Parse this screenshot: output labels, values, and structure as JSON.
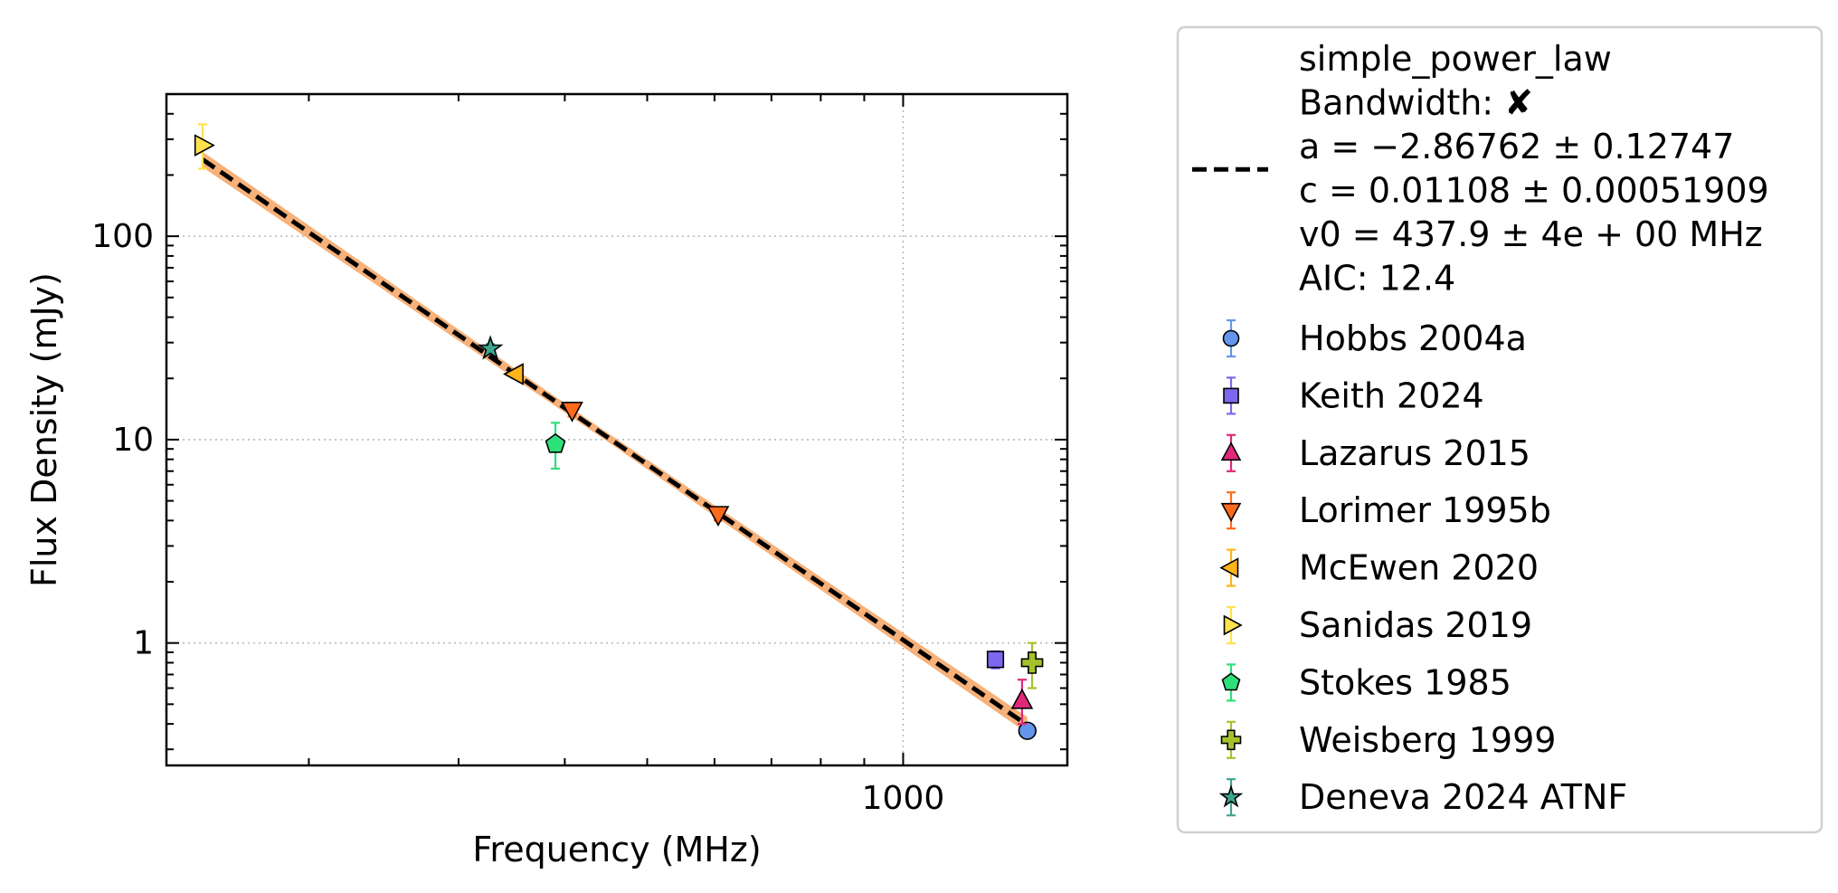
{
  "chart_data": {
    "type": "scatter",
    "xscale": "log",
    "yscale": "log",
    "xlabel": "Frequency (MHz)",
    "ylabel": "Flux Density (mJy)",
    "xlim": [
      136,
      1560
    ],
    "ylim": [
      0.25,
      500
    ],
    "grid": true,
    "legend_position": "outside-right",
    "x_ticks": [
      {
        "value": 1000,
        "label": "1000"
      }
    ],
    "y_ticks": [
      {
        "value": 1,
        "label": "1"
      },
      {
        "value": 10,
        "label": "10"
      },
      {
        "value": 100,
        "label": "100"
      }
    ],
    "fit": {
      "name": "simple_power_law",
      "legend_lines": [
        "simple_power_law",
        "Bandwidth: ✘",
        "a = −2.86762 ± 0.12747",
        "c = 0.01108 ± 0.00051909",
        "v0 = 437.9 ± 4e + 00 MHz",
        "AIC: 12.4"
      ],
      "a": -2.86762,
      "c": 0.01108,
      "v0": 437.9,
      "x_range": [
        150,
        1400
      ],
      "line_color": "#000000",
      "band_color": "#f6a86a"
    },
    "series": [
      {
        "name": "Hobbs 2004a",
        "marker": "circle",
        "color": "#6495ed",
        "points": [
          {
            "x": 1400,
            "y": 0.37,
            "yerr": [
              0.0,
              0.0
            ]
          }
        ]
      },
      {
        "name": "Keith 2024",
        "marker": "square",
        "color": "#7b68ee",
        "points": [
          {
            "x": 1284,
            "y": 0.83,
            "yerr": [
              0.08,
              0.08
            ]
          }
        ]
      },
      {
        "name": "Lazarus 2015",
        "marker": "triangle-up",
        "color": "#e0287a",
        "points": [
          {
            "x": 1380,
            "y": 0.52,
            "yerr": [
              0.12,
              0.14
            ]
          }
        ]
      },
      {
        "name": "Lorimer 1995b",
        "marker": "triangle-down",
        "color": "#ff6a1a",
        "points": [
          {
            "x": 408,
            "y": 14.0,
            "yerr": [
              1.0,
              1.0
            ]
          },
          {
            "x": 606,
            "y": 4.3,
            "yerr": [
              0.3,
              0.3
            ]
          }
        ]
      },
      {
        "name": "McEwen 2020",
        "marker": "triangle-left",
        "color": "#ffb31a",
        "points": [
          {
            "x": 350,
            "y": 21.0,
            "yerr": [
              1.0,
              1.0
            ]
          }
        ]
      },
      {
        "name": "Sanidas 2019",
        "marker": "triangle-right",
        "color": "#ffe14d",
        "points": [
          {
            "x": 150,
            "y": 280,
            "yerr": [
              65,
              75
            ]
          }
        ]
      },
      {
        "name": "Stokes 1985",
        "marker": "pentagon",
        "color": "#2ee07a",
        "points": [
          {
            "x": 390,
            "y": 9.5,
            "yerr": [
              2.3,
              2.6
            ]
          }
        ]
      },
      {
        "name": "Weisberg 1999",
        "marker": "plus",
        "color": "#a5c22a",
        "points": [
          {
            "x": 1418,
            "y": 0.8,
            "yerr": [
              0.2,
              0.2
            ]
          }
        ]
      },
      {
        "name": "Deneva 2024 ATNF",
        "marker": "star",
        "color": "#3fa590",
        "points": [
          {
            "x": 327,
            "y": 28,
            "yerr": [
              1.5,
              1.5
            ]
          }
        ]
      }
    ]
  }
}
